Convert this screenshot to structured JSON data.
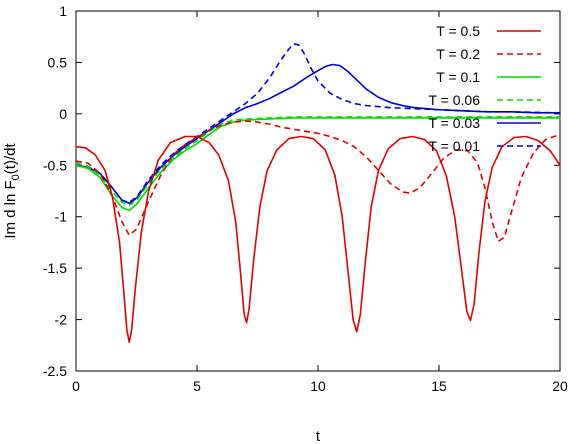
{
  "chart_data": {
    "type": "line",
    "xlabel": "t",
    "ylabel": "Im d ln F0(t)/dt",
    "ylabel_base": "Im d ln F",
    "ylabel_sub": "0",
    "ylabel_tail": "(t)/dt",
    "xlim": [
      0,
      20
    ],
    "ylim": [
      -2.5,
      1
    ],
    "x_ticks": [
      "0",
      "5",
      "10",
      "15",
      "20"
    ],
    "y_ticks": [
      "1",
      "0.5",
      "0",
      "-0.5",
      "-1",
      "-1.5",
      "-2",
      "-2.5"
    ],
    "grid": false,
    "legend_position": "top-right",
    "series": [
      {
        "name": "T = 0.5",
        "color": "#e00000",
        "dash": "solid",
        "points": [
          [
            0,
            -0.32
          ],
          [
            0.4,
            -0.33
          ],
          [
            0.8,
            -0.4
          ],
          [
            1.2,
            -0.55
          ],
          [
            1.5,
            -0.8
          ],
          [
            1.8,
            -1.25
          ],
          [
            2.0,
            -1.8
          ],
          [
            2.1,
            -2.1
          ],
          [
            2.2,
            -2.22
          ],
          [
            2.3,
            -2.1
          ],
          [
            2.45,
            -1.7
          ],
          [
            2.7,
            -1.15
          ],
          [
            3.0,
            -0.75
          ],
          [
            3.4,
            -0.45
          ],
          [
            3.9,
            -0.28
          ],
          [
            4.5,
            -0.22
          ],
          [
            5.0,
            -0.22
          ],
          [
            5.5,
            -0.28
          ],
          [
            5.9,
            -0.4
          ],
          [
            6.3,
            -0.65
          ],
          [
            6.6,
            -1.05
          ],
          [
            6.8,
            -1.55
          ],
          [
            6.95,
            -1.95
          ],
          [
            7.05,
            -2.03
          ],
          [
            7.15,
            -1.9
          ],
          [
            7.35,
            -1.4
          ],
          [
            7.6,
            -0.9
          ],
          [
            7.9,
            -0.55
          ],
          [
            8.3,
            -0.35
          ],
          [
            8.8,
            -0.24
          ],
          [
            9.3,
            -0.22
          ],
          [
            9.8,
            -0.24
          ],
          [
            10.3,
            -0.35
          ],
          [
            10.7,
            -0.6
          ],
          [
            11.0,
            -1.0
          ],
          [
            11.25,
            -1.55
          ],
          [
            11.45,
            -2.0
          ],
          [
            11.6,
            -2.12
          ],
          [
            11.75,
            -1.95
          ],
          [
            11.95,
            -1.45
          ],
          [
            12.2,
            -0.9
          ],
          [
            12.5,
            -0.55
          ],
          [
            12.9,
            -0.34
          ],
          [
            13.4,
            -0.24
          ],
          [
            13.9,
            -0.22
          ],
          [
            14.4,
            -0.25
          ],
          [
            14.9,
            -0.36
          ],
          [
            15.3,
            -0.6
          ],
          [
            15.65,
            -1.0
          ],
          [
            15.95,
            -1.55
          ],
          [
            16.15,
            -1.92
          ],
          [
            16.3,
            -2.01
          ],
          [
            16.45,
            -1.85
          ],
          [
            16.65,
            -1.35
          ],
          [
            16.9,
            -0.85
          ],
          [
            17.2,
            -0.52
          ],
          [
            17.6,
            -0.32
          ],
          [
            18.1,
            -0.23
          ],
          [
            18.6,
            -0.22
          ],
          [
            19.1,
            -0.26
          ],
          [
            19.6,
            -0.36
          ],
          [
            20,
            -0.5
          ]
        ]
      },
      {
        "name": "T = 0.2",
        "color": "#e00000",
        "dash": "dashed",
        "points": [
          [
            0,
            -0.46
          ],
          [
            0.5,
            -0.48
          ],
          [
            1.0,
            -0.58
          ],
          [
            1.5,
            -0.8
          ],
          [
            1.9,
            -1.05
          ],
          [
            2.2,
            -1.18
          ],
          [
            2.5,
            -1.12
          ],
          [
            3.0,
            -0.85
          ],
          [
            3.5,
            -0.6
          ],
          [
            4.0,
            -0.4
          ],
          [
            4.5,
            -0.3
          ],
          [
            5.0,
            -0.23
          ],
          [
            5.5,
            -0.16
          ],
          [
            6.0,
            -0.11
          ],
          [
            6.5,
            -0.08
          ],
          [
            7.0,
            -0.07
          ],
          [
            7.5,
            -0.08
          ],
          [
            8.0,
            -0.1
          ],
          [
            8.5,
            -0.13
          ],
          [
            9.0,
            -0.15
          ],
          [
            9.5,
            -0.17
          ],
          [
            10.0,
            -0.19
          ],
          [
            10.5,
            -0.22
          ],
          [
            11.0,
            -0.26
          ],
          [
            11.5,
            -0.32
          ],
          [
            12.0,
            -0.42
          ],
          [
            12.5,
            -0.55
          ],
          [
            13.0,
            -0.68
          ],
          [
            13.5,
            -0.76
          ],
          [
            13.8,
            -0.77
          ],
          [
            14.2,
            -0.72
          ],
          [
            14.7,
            -0.58
          ],
          [
            15.2,
            -0.43
          ],
          [
            15.7,
            -0.35
          ],
          [
            16.2,
            -0.36
          ],
          [
            16.6,
            -0.48
          ],
          [
            16.9,
            -0.72
          ],
          [
            17.2,
            -1.05
          ],
          [
            17.45,
            -1.24
          ],
          [
            17.7,
            -1.2
          ],
          [
            18.0,
            -0.95
          ],
          [
            18.4,
            -0.62
          ],
          [
            18.9,
            -0.38
          ],
          [
            19.4,
            -0.25
          ],
          [
            20,
            -0.2
          ]
        ]
      },
      {
        "name": "T = 0.1",
        "color": "#00dd00",
        "dash": "solid",
        "points": [
          [
            0,
            -0.5
          ],
          [
            0.5,
            -0.53
          ],
          [
            1.0,
            -0.62
          ],
          [
            1.5,
            -0.8
          ],
          [
            1.9,
            -0.91
          ],
          [
            2.2,
            -0.94
          ],
          [
            2.5,
            -0.88
          ],
          [
            3.0,
            -0.72
          ],
          [
            3.5,
            -0.57
          ],
          [
            4.0,
            -0.45
          ],
          [
            4.5,
            -0.36
          ],
          [
            5.0,
            -0.29
          ],
          [
            5.5,
            -0.2
          ],
          [
            6.0,
            -0.12
          ],
          [
            6.5,
            -0.08
          ],
          [
            7.0,
            -0.06
          ],
          [
            8.0,
            -0.05
          ],
          [
            9.0,
            -0.04
          ],
          [
            10.0,
            -0.04
          ],
          [
            12.0,
            -0.04
          ],
          [
            14.0,
            -0.04
          ],
          [
            16.0,
            -0.04
          ],
          [
            18.0,
            -0.04
          ],
          [
            20,
            -0.04
          ]
        ]
      },
      {
        "name": "T = 0.06",
        "color": "#00dd00",
        "dash": "dashed",
        "points": [
          [
            0,
            -0.48
          ],
          [
            0.5,
            -0.51
          ],
          [
            1.0,
            -0.6
          ],
          [
            1.5,
            -0.76
          ],
          [
            1.9,
            -0.86
          ],
          [
            2.2,
            -0.89
          ],
          [
            2.5,
            -0.84
          ],
          [
            3.0,
            -0.68
          ],
          [
            3.5,
            -0.54
          ],
          [
            4.0,
            -0.43
          ],
          [
            4.5,
            -0.34
          ],
          [
            5.0,
            -0.26
          ],
          [
            5.5,
            -0.17
          ],
          [
            6.0,
            -0.1
          ],
          [
            6.5,
            -0.06
          ],
          [
            7.0,
            -0.05
          ],
          [
            8.0,
            -0.04
          ],
          [
            9.0,
            -0.03
          ],
          [
            10.0,
            -0.03
          ],
          [
            12.0,
            -0.03
          ],
          [
            14.0,
            -0.03
          ],
          [
            16.0,
            -0.03
          ],
          [
            18.0,
            -0.03
          ],
          [
            20,
            -0.03
          ]
        ]
      },
      {
        "name": "T = 0.03",
        "color": "#0000dd",
        "dash": "solid",
        "points": [
          [
            0,
            -0.5
          ],
          [
            0.5,
            -0.52
          ],
          [
            1.0,
            -0.58
          ],
          [
            1.5,
            -0.72
          ],
          [
            1.9,
            -0.84
          ],
          [
            2.2,
            -0.87
          ],
          [
            2.5,
            -0.82
          ],
          [
            3.0,
            -0.66
          ],
          [
            3.5,
            -0.52
          ],
          [
            4.0,
            -0.41
          ],
          [
            4.5,
            -0.32
          ],
          [
            5.0,
            -0.24
          ],
          [
            5.5,
            -0.16
          ],
          [
            6.0,
            -0.08
          ],
          [
            6.5,
            0.0
          ],
          [
            7.0,
            0.06
          ],
          [
            7.5,
            0.1
          ],
          [
            8.0,
            0.15
          ],
          [
            8.5,
            0.21
          ],
          [
            9.0,
            0.27
          ],
          [
            9.5,
            0.35
          ],
          [
            10.0,
            0.42
          ],
          [
            10.3,
            0.46
          ],
          [
            10.6,
            0.48
          ],
          [
            10.9,
            0.47
          ],
          [
            11.2,
            0.42
          ],
          [
            11.6,
            0.33
          ],
          [
            12.0,
            0.24
          ],
          [
            12.5,
            0.16
          ],
          [
            13.0,
            0.11
          ],
          [
            13.5,
            0.08
          ],
          [
            14.0,
            0.06
          ],
          [
            14.5,
            0.05
          ],
          [
            15.0,
            0.04
          ],
          [
            16.0,
            0.03
          ],
          [
            17.0,
            0.02
          ],
          [
            18.0,
            0.02
          ],
          [
            19.0,
            0.01
          ],
          [
            20,
            0.01
          ]
        ]
      },
      {
        "name": "T = 0.01",
        "color": "#0000dd",
        "dash": "dashed",
        "points": [
          [
            0,
            -0.48
          ],
          [
            0.5,
            -0.51
          ],
          [
            1.0,
            -0.58
          ],
          [
            1.5,
            -0.72
          ],
          [
            1.9,
            -0.84
          ],
          [
            2.2,
            -0.86
          ],
          [
            2.5,
            -0.81
          ],
          [
            3.0,
            -0.64
          ],
          [
            3.5,
            -0.5
          ],
          [
            4.0,
            -0.39
          ],
          [
            4.5,
            -0.3
          ],
          [
            5.0,
            -0.22
          ],
          [
            5.5,
            -0.14
          ],
          [
            6.0,
            -0.06
          ],
          [
            6.5,
            0.02
          ],
          [
            7.0,
            0.1
          ],
          [
            7.5,
            0.2
          ],
          [
            8.0,
            0.35
          ],
          [
            8.4,
            0.5
          ],
          [
            8.7,
            0.6
          ],
          [
            8.9,
            0.66
          ],
          [
            9.0,
            0.68
          ],
          [
            9.2,
            0.67
          ],
          [
            9.4,
            0.6
          ],
          [
            9.7,
            0.45
          ],
          [
            10.0,
            0.32
          ],
          [
            10.5,
            0.2
          ],
          [
            11.0,
            0.14
          ],
          [
            11.5,
            0.1
          ],
          [
            12.0,
            0.08
          ],
          [
            13.0,
            0.06
          ],
          [
            14.0,
            0.05
          ],
          [
            15.0,
            0.04
          ],
          [
            16.0,
            0.03
          ],
          [
            17.0,
            0.02
          ],
          [
            18.0,
            0.02
          ],
          [
            20,
            0.01
          ]
        ]
      }
    ]
  }
}
